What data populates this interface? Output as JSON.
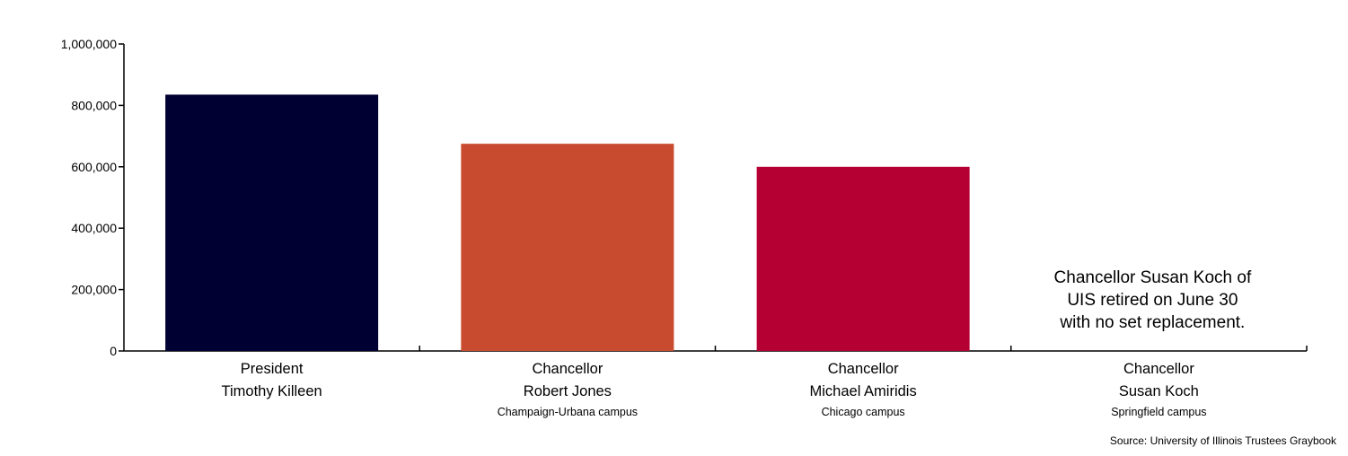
{
  "chart_data": {
    "type": "bar",
    "title": "",
    "xlabel": "",
    "ylabel": "",
    "ylim": [
      0,
      1000000
    ],
    "yticks": [
      0,
      200000,
      400000,
      600000,
      800000,
      1000000
    ],
    "ytick_labels": [
      "0",
      "200,000",
      "400,000",
      "600,000",
      "800,000",
      "1,000,000"
    ],
    "grid": false,
    "categories": [
      {
        "title": "President",
        "name": "Timothy Killeen",
        "campus": ""
      },
      {
        "title": "Chancellor",
        "name": "Robert Jones",
        "campus": "Champaign-Urbana campus"
      },
      {
        "title": "Chancellor",
        "name": "Michael Amiridis",
        "campus": "Chicago campus"
      },
      {
        "title": "Chancellor",
        "name": "Susan Koch",
        "campus": "Springfield campus"
      }
    ],
    "values": [
      835000,
      675000,
      600000,
      null
    ],
    "colors": [
      "#000033",
      "#c84b2f",
      "#b50033",
      null
    ],
    "annotation": [
      "Chancellor Susan Koch of",
      "UIS retired on June 30",
      "with no set replacement."
    ],
    "source": "Source: University of Illinois Trustees Graybook"
  }
}
